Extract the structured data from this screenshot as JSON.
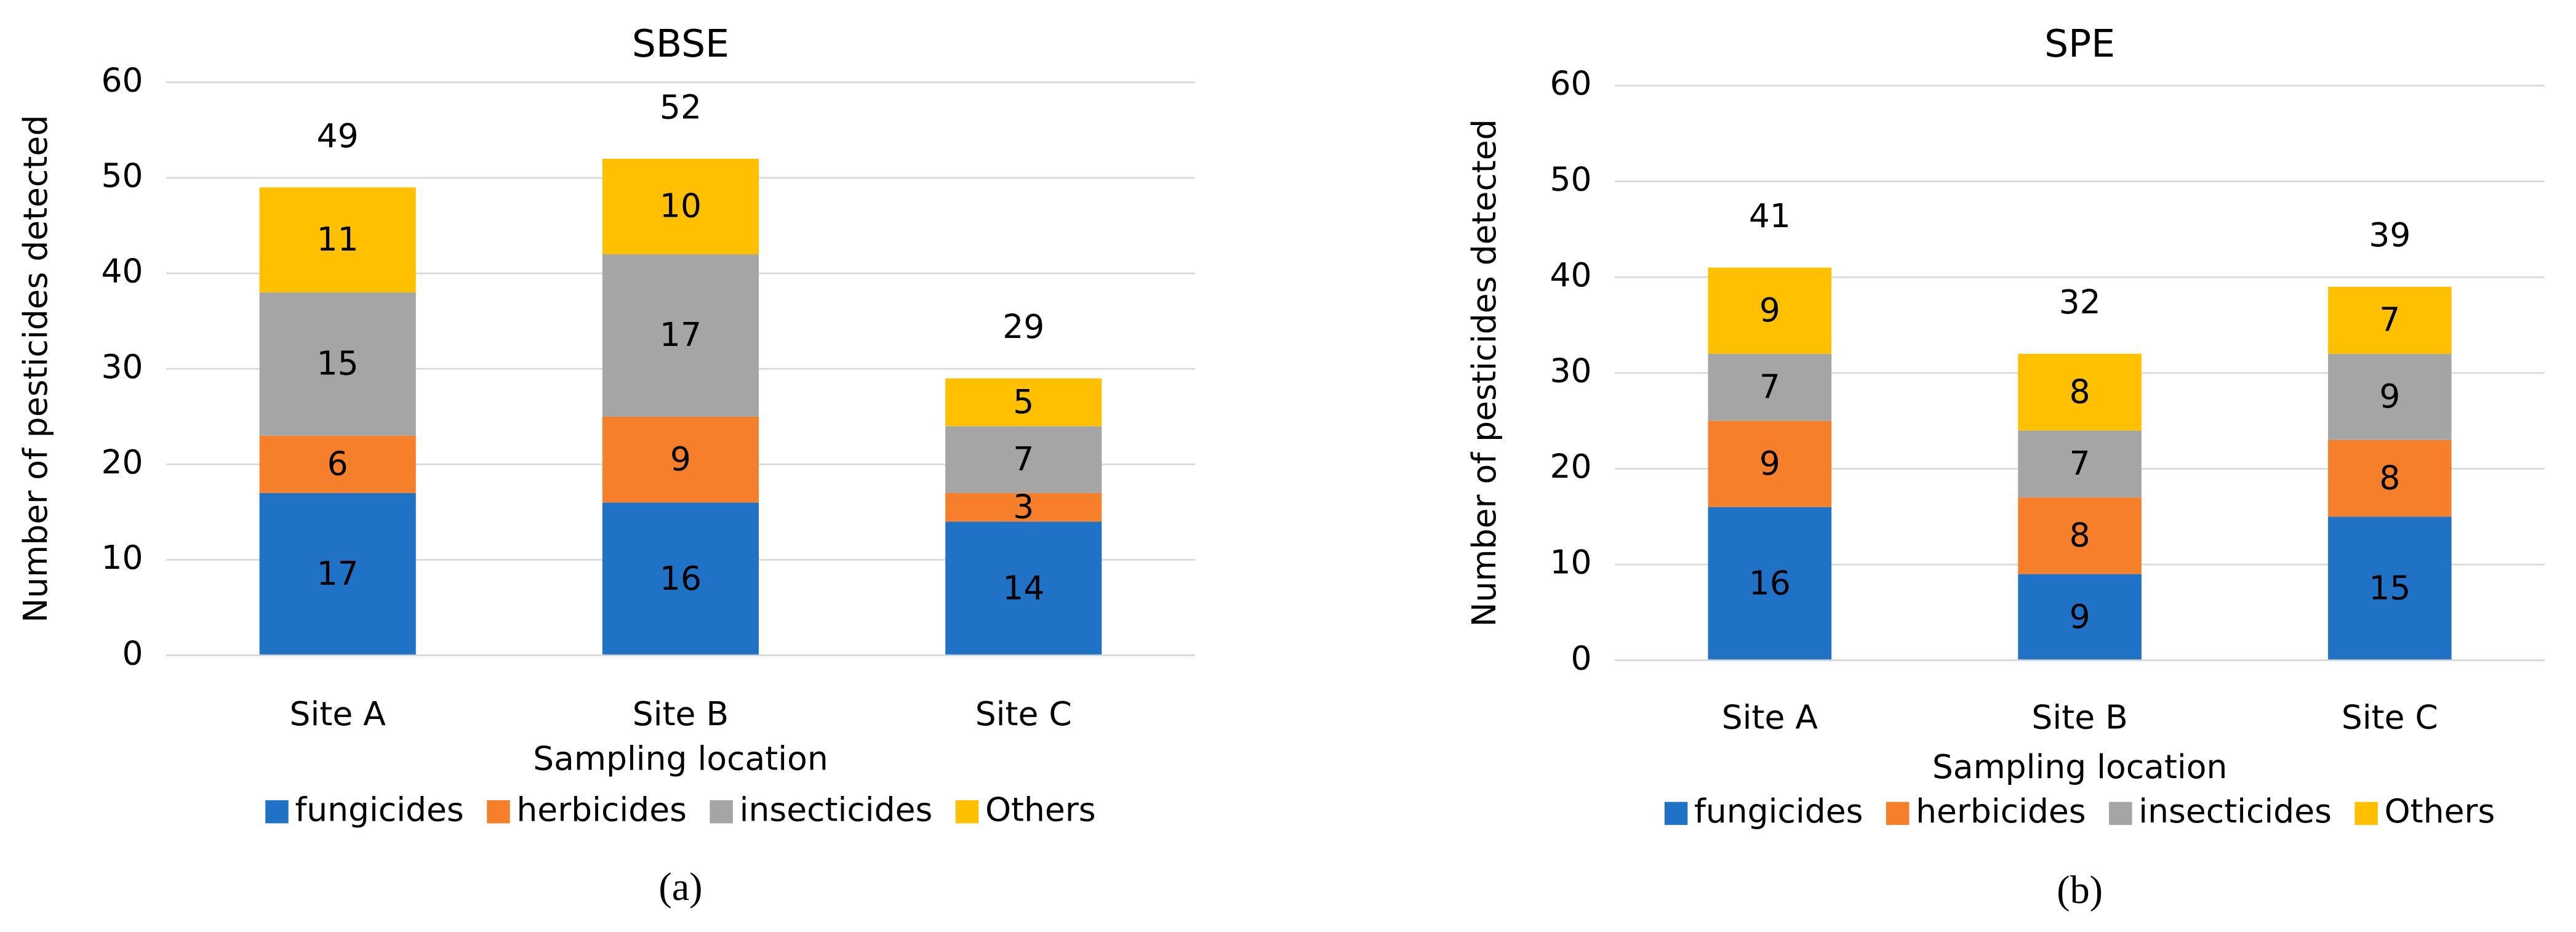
{
  "chart_data": [
    {
      "type": "stacked_bar",
      "title": "SBSE",
      "xlabel": "Sampling location",
      "ylabel": "Number of pesticides detected",
      "caption": "(a)",
      "categories": [
        "Site A",
        "Site B",
        "Site C"
      ],
      "series": [
        {
          "name": "fungicides",
          "color": "#2072c6",
          "values": [
            17,
            16,
            14
          ]
        },
        {
          "name": "herbicides",
          "color": "#f67f2b",
          "values": [
            6,
            9,
            3
          ]
        },
        {
          "name": "insecticides",
          "color": "#a5a5a5",
          "values": [
            15,
            17,
            7
          ]
        },
        {
          "name": "Others",
          "color": "#ffc000",
          "values": [
            11,
            10,
            5
          ]
        }
      ],
      "totals": [
        49,
        52,
        29
      ],
      "ylim": [
        0,
        60
      ],
      "yticks": [
        0,
        10,
        20,
        30,
        40,
        50,
        60
      ],
      "grid": true,
      "legend": "bottom"
    },
    {
      "type": "stacked_bar",
      "title": "SPE",
      "xlabel": "Sampling location",
      "ylabel": "Number of pesticides detected",
      "caption": "(b)",
      "categories": [
        "Site A",
        "Site B",
        "Site C"
      ],
      "series": [
        {
          "name": "fungicides",
          "color": "#2072c6",
          "values": [
            16,
            9,
            15
          ]
        },
        {
          "name": "herbicides",
          "color": "#f67f2b",
          "values": [
            9,
            8,
            8
          ]
        },
        {
          "name": "insecticides",
          "color": "#a5a5a5",
          "values": [
            7,
            7,
            9
          ]
        },
        {
          "name": "Others",
          "color": "#ffc000",
          "values": [
            9,
            8,
            7
          ]
        }
      ],
      "totals": [
        41,
        32,
        39
      ],
      "ylim": [
        0,
        60
      ],
      "yticks": [
        0,
        10,
        20,
        30,
        40,
        50,
        60
      ],
      "grid": true,
      "legend": "bottom"
    }
  ]
}
